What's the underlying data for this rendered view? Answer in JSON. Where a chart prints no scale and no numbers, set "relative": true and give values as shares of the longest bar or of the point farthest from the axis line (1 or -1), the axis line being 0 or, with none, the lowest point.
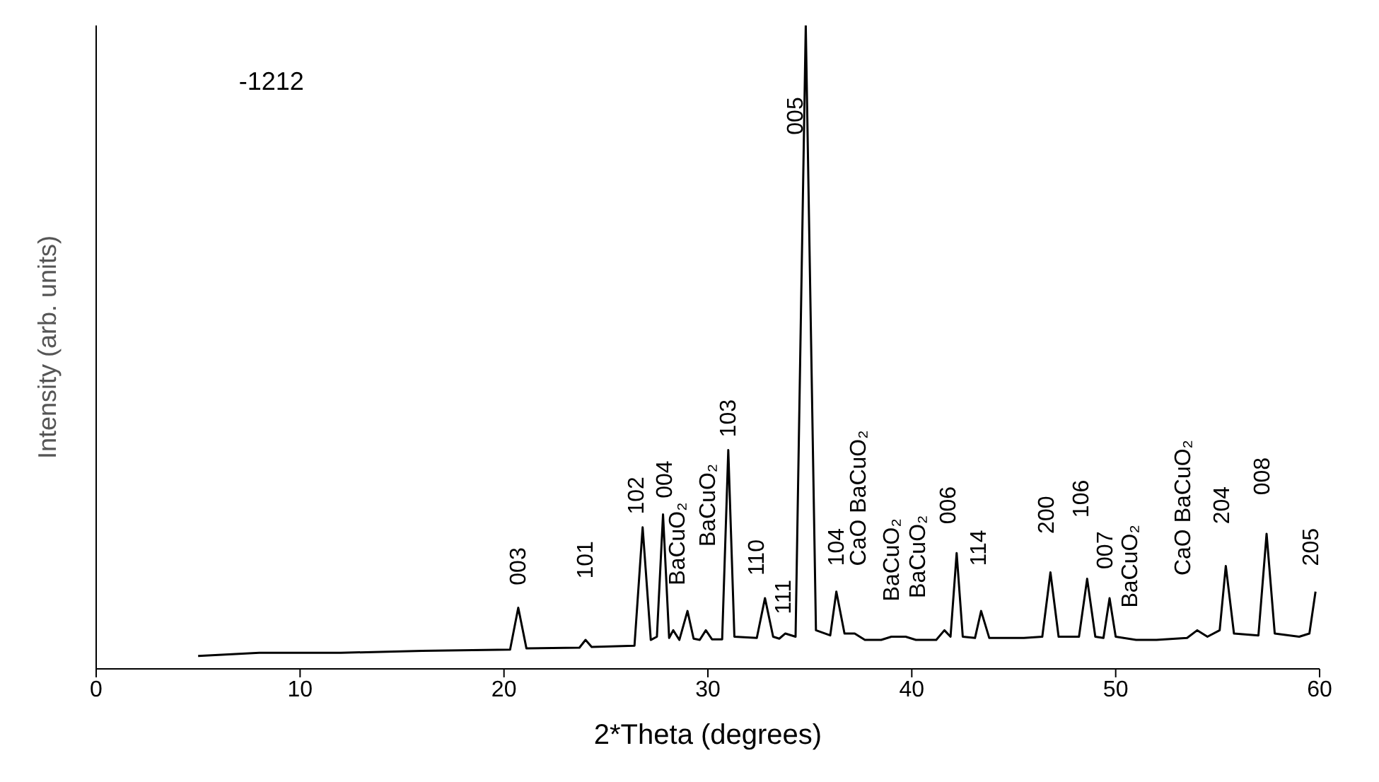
{
  "chart_data": {
    "type": "line",
    "relative": true,
    "xlabel": "2*Theta (degrees)",
    "ylabel": "Intensity (arb. units)",
    "xlim": [
      0,
      60
    ],
    "xticks": [
      0,
      10,
      20,
      30,
      40,
      50,
      60
    ],
    "marker": "none",
    "line_style": "solid",
    "x": [
      5,
      8,
      12,
      16,
      20.3,
      20.7,
      21.1,
      23.7,
      24,
      24.3,
      26.4,
      26.8,
      27.2,
      27.5,
      27.8,
      28.1,
      28.3,
      28.6,
      29,
      29.3,
      29.6,
      29.9,
      30.2,
      30.7,
      31,
      31.3,
      32.4,
      32.8,
      33.2,
      33.5,
      33.8,
      34.3,
      34.8,
      35.3,
      36,
      36.3,
      36.7,
      37.2,
      37.7,
      38.5,
      39,
      39.7,
      40.2,
      41.2,
      41.6,
      41.9,
      42.2,
      42.5,
      43.1,
      43.4,
      43.8,
      45.5,
      46.4,
      46.8,
      47.2,
      48.2,
      48.6,
      49,
      49.4,
      49.7,
      50,
      51,
      52,
      53.5,
      54,
      54.5,
      55.1,
      55.4,
      55.8,
      57,
      57.4,
      57.8,
      59,
      59.5,
      59.8
    ],
    "values": [
      0.02,
      0.025,
      0.025,
      0.028,
      0.03,
      0.095,
      0.032,
      0.033,
      0.045,
      0.034,
      0.036,
      0.22,
      0.045,
      0.05,
      0.24,
      0.048,
      0.06,
      0.045,
      0.09,
      0.047,
      0.045,
      0.06,
      0.046,
      0.046,
      0.34,
      0.05,
      0.048,
      0.11,
      0.05,
      0.047,
      0.055,
      0.05,
      1,
      0.06,
      0.052,
      0.12,
      0.055,
      0.055,
      0.045,
      0.045,
      0.05,
      0.05,
      0.045,
      0.045,
      0.06,
      0.05,
      0.18,
      0.05,
      0.048,
      0.09,
      0.048,
      0.048,
      0.05,
      0.15,
      0.05,
      0.05,
      0.14,
      0.05,
      0.048,
      0.11,
      0.05,
      0.045,
      0.045,
      0.048,
      0.06,
      0.05,
      0.06,
      0.16,
      0.055,
      0.052,
      0.21,
      0.055,
      0.05,
      0.055,
      0.12
    ],
    "color": "#000000",
    "annotations": [
      "-1212",
      "003",
      "101",
      "102",
      "004",
      "BaCuO₂",
      "BaCuO₂",
      "103",
      "110",
      "111",
      "005",
      "104",
      "CaO BaCuO₂",
      "BaCuO₂",
      "BaCuO₂",
      "006",
      "114",
      "200",
      "106",
      "007",
      "BaCuO₂",
      "CaO BaCuO₂",
      "204",
      "008",
      "205"
    ]
  }
}
